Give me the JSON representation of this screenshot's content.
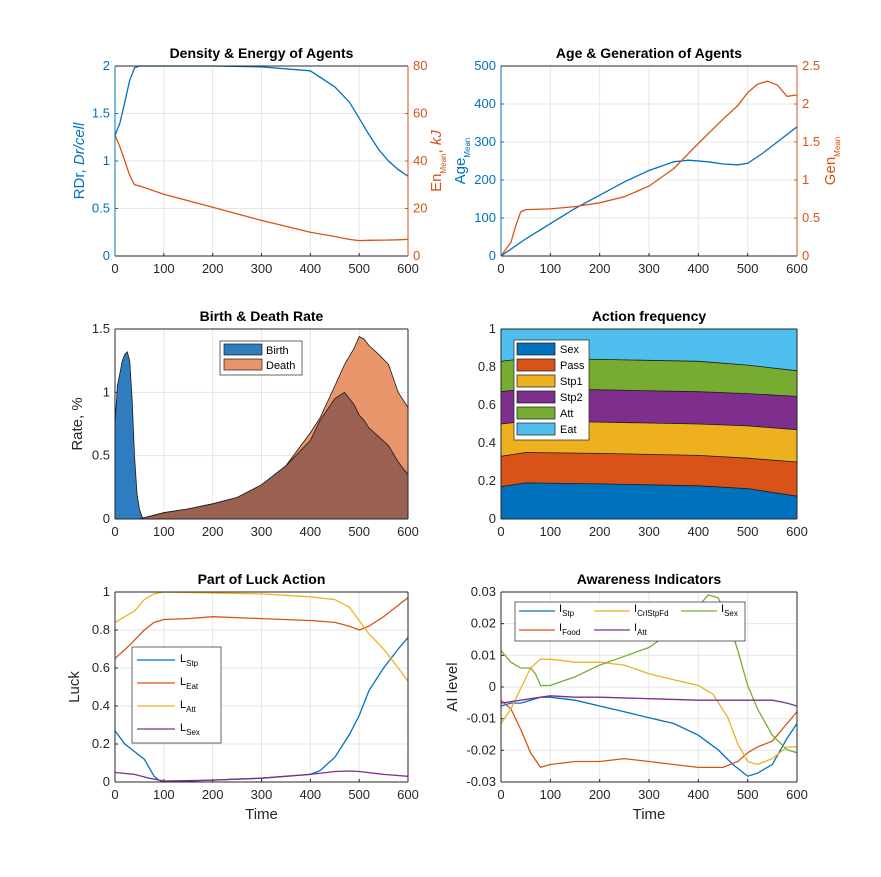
{
  "colors": {
    "blue": "#0072BD",
    "orange": "#D95319",
    "yellow": "#EDB120",
    "purple": "#7E2F8E",
    "green": "#77AC30",
    "cyan": "#4DBEEE"
  },
  "chart_data": [
    {
      "id": "density",
      "type": "line",
      "title": "Density & Energy of Agents",
      "xlim": [
        0,
        600
      ],
      "xticks": [
        0,
        100,
        200,
        300,
        400,
        500,
        600
      ],
      "ylabel_left_parts": [
        "RDr, ",
        "Dr/cell"
      ],
      "ylabel_right_parts": [
        "En",
        "Mean",
        ", ",
        "kJ"
      ],
      "ylim_left": [
        0,
        2
      ],
      "yticks_left": [
        "0",
        "0.5",
        "1",
        "1.5",
        "2"
      ],
      "ylim_right": [
        0,
        80
      ],
      "yticks_right": [
        "0",
        "20",
        "40",
        "60",
        "80"
      ],
      "series": [
        {
          "axis": "left",
          "color": "blue",
          "x": [
            0,
            10,
            20,
            30,
            40,
            50,
            100,
            200,
            300,
            400,
            450,
            480,
            500,
            520,
            540,
            560,
            580,
            600
          ],
          "y": [
            1.27,
            1.4,
            1.62,
            1.85,
            1.98,
            2.0,
            2.0,
            2.0,
            1.99,
            1.95,
            1.78,
            1.62,
            1.45,
            1.28,
            1.12,
            1.0,
            0.91,
            0.84
          ]
        },
        {
          "axis": "right",
          "color": "orange",
          "x": [
            0,
            10,
            20,
            30,
            40,
            50,
            100,
            200,
            300,
            400,
            450,
            480,
            500,
            520,
            550,
            580,
            600
          ],
          "y": [
            51,
            46,
            40,
            34,
            30,
            29.5,
            26,
            20.5,
            15,
            10,
            8.2,
            7,
            6.5,
            6.6,
            6.7,
            6.8,
            7
          ]
        }
      ]
    },
    {
      "id": "age",
      "type": "line",
      "title": "Age & Generation of Agents",
      "xlim": [
        0,
        600
      ],
      "xticks": [
        0,
        100,
        200,
        300,
        400,
        500,
        600
      ],
      "ylabel_left_parts": [
        "Age",
        "Mean"
      ],
      "ylabel_right_parts": [
        "Gen",
        "Mean"
      ],
      "ylim_left": [
        0,
        500
      ],
      "yticks_left": [
        "0",
        "100",
        "200",
        "300",
        "400",
        "500"
      ],
      "ylim_right": [
        0,
        2.5
      ],
      "yticks_right": [
        "0",
        "0.5",
        "1",
        "1.5",
        "2",
        "2.5"
      ],
      "series": [
        {
          "axis": "left",
          "color": "blue",
          "x": [
            0,
            50,
            100,
            150,
            200,
            250,
            300,
            350,
            380,
            420,
            450,
            480,
            500,
            530,
            560,
            600
          ],
          "y": [
            0,
            45,
            85,
            125,
            160,
            195,
            225,
            248,
            252,
            248,
            242,
            240,
            244,
            270,
            300,
            340
          ]
        },
        {
          "axis": "right",
          "color": "orange",
          "x": [
            0,
            20,
            30,
            40,
            50,
            100,
            150,
            200,
            250,
            300,
            350,
            400,
            450,
            480,
            500,
            520,
            540,
            560,
            580,
            600
          ],
          "y": [
            0,
            0.18,
            0.4,
            0.58,
            0.61,
            0.62,
            0.65,
            0.7,
            0.78,
            0.92,
            1.15,
            1.48,
            1.8,
            1.98,
            2.15,
            2.26,
            2.3,
            2.25,
            2.1,
            2.12
          ]
        }
      ]
    },
    {
      "id": "birth",
      "type": "area",
      "title": "Birth & Death Rate",
      "xlim": [
        0,
        600
      ],
      "xticks": [
        0,
        100,
        200,
        300,
        400,
        500,
        600
      ],
      "ylabel": "Rate, %",
      "ylim": [
        0,
        1.5
      ],
      "yticks": [
        "0",
        "0.5",
        "1",
        "1.5"
      ],
      "legend": [
        "Birth",
        "Death"
      ],
      "series": [
        {
          "name": "Birth",
          "color": "#2f7dc0",
          "x": [
            0,
            5,
            10,
            15,
            20,
            25,
            30,
            35,
            40,
            45,
            50,
            55,
            60
          ],
          "y": [
            0.75,
            1.05,
            1.15,
            1.25,
            1.3,
            1.32,
            1.25,
            0.95,
            0.5,
            0.2,
            0.08,
            0.02,
            0
          ]
        },
        {
          "name": "Death",
          "color": "#e8956b",
          "x": [
            50,
            60,
            80,
            100,
            150,
            200,
            250,
            300,
            350,
            400,
            420,
            450,
            470,
            490,
            500,
            510,
            520,
            540,
            560,
            580,
            600
          ],
          "y": [
            0,
            0.01,
            0.03,
            0.05,
            0.08,
            0.12,
            0.17,
            0.27,
            0.42,
            0.68,
            0.8,
            1.05,
            1.22,
            1.35,
            1.44,
            1.42,
            1.37,
            1.3,
            1.22,
            1.0,
            0.88
          ]
        },
        {
          "name": "overlap",
          "color": "#9a6152",
          "x": [
            50,
            60,
            80,
            100,
            150,
            200,
            250,
            300,
            350,
            400,
            420,
            450,
            470,
            490,
            500,
            510,
            520,
            540,
            560,
            580,
            600
          ],
          "y": [
            0,
            0.01,
            0.03,
            0.05,
            0.08,
            0.12,
            0.17,
            0.27,
            0.42,
            0.62,
            0.78,
            0.95,
            1.0,
            0.9,
            0.82,
            0.78,
            0.72,
            0.65,
            0.58,
            0.45,
            0.35
          ]
        }
      ]
    },
    {
      "id": "action",
      "type": "area",
      "title": "Action frequency",
      "xlim": [
        0,
        600
      ],
      "xticks": [
        0,
        100,
        200,
        300,
        400,
        500,
        600
      ],
      "ylim": [
        0,
        1
      ],
      "yticks": [
        "0",
        "0.2",
        "0.4",
        "0.6",
        "0.8",
        "1"
      ],
      "legend": [
        "Sex",
        "Pass",
        "Stp1",
        "Stp2",
        "Att",
        "Eat"
      ],
      "series": [
        {
          "name": "Sex",
          "color": "blue",
          "x": [
            0,
            50,
            200,
            400,
            500,
            600
          ],
          "y": [
            0.17,
            0.19,
            0.185,
            0.175,
            0.16,
            0.12
          ]
        },
        {
          "name": "Pass",
          "color": "orange",
          "x": [
            0,
            50,
            200,
            400,
            500,
            600
          ],
          "y": [
            0.33,
            0.35,
            0.345,
            0.335,
            0.32,
            0.3
          ]
        },
        {
          "name": "Stp1",
          "color": "yellow",
          "x": [
            0,
            50,
            200,
            400,
            500,
            600
          ],
          "y": [
            0.5,
            0.515,
            0.51,
            0.5,
            0.49,
            0.47
          ]
        },
        {
          "name": "Stp2",
          "color": "purple",
          "x": [
            0,
            50,
            200,
            400,
            500,
            600
          ],
          "y": [
            0.67,
            0.685,
            0.68,
            0.67,
            0.66,
            0.645
          ]
        },
        {
          "name": "Att",
          "color": "green",
          "x": [
            0,
            50,
            200,
            400,
            500,
            600
          ],
          "y": [
            0.83,
            0.845,
            0.84,
            0.83,
            0.81,
            0.78
          ]
        },
        {
          "name": "Eat",
          "color": "cyan",
          "x": [
            0,
            600
          ],
          "y": [
            1,
            1
          ]
        }
      ]
    },
    {
      "id": "luck",
      "type": "line",
      "title": "Part of Luck Action",
      "xlim": [
        0,
        600
      ],
      "xticks": [
        0,
        100,
        200,
        300,
        400,
        500,
        600
      ],
      "xlabel": "Time",
      "ylabel": "Luck",
      "ylim": [
        0,
        1
      ],
      "yticks": [
        "0",
        "0.2",
        "0.4",
        "0.6",
        "0.8",
        "1"
      ],
      "legend": [
        {
          "base": "L",
          "sub": "Stp"
        },
        {
          "base": "L",
          "sub": "Eat"
        },
        {
          "base": "L",
          "sub": "Att"
        },
        {
          "base": "L",
          "sub": "Sex"
        }
      ],
      "series": [
        {
          "name": "LStp",
          "color": "blue",
          "x": [
            0,
            20,
            40,
            60,
            80,
            90,
            100,
            200,
            300,
            400,
            420,
            450,
            480,
            500,
            520,
            550,
            580,
            600
          ],
          "y": [
            0.27,
            0.2,
            0.16,
            0.12,
            0.03,
            0.01,
            0,
            0.01,
            0.02,
            0.04,
            0.06,
            0.13,
            0.25,
            0.35,
            0.48,
            0.6,
            0.7,
            0.76
          ]
        },
        {
          "name": "LEat",
          "color": "orange",
          "x": [
            0,
            30,
            60,
            80,
            100,
            150,
            200,
            300,
            400,
            450,
            480,
            500,
            520,
            550,
            580,
            600
          ],
          "y": [
            0.65,
            0.72,
            0.8,
            0.84,
            0.855,
            0.86,
            0.87,
            0.86,
            0.85,
            0.84,
            0.82,
            0.8,
            0.82,
            0.87,
            0.93,
            0.97
          ]
        },
        {
          "name": "LAtt",
          "color": "yellow",
          "x": [
            0,
            20,
            40,
            60,
            80,
            100,
            200,
            300,
            400,
            450,
            480,
            500,
            520,
            550,
            580,
            600
          ],
          "y": [
            0.84,
            0.87,
            0.9,
            0.96,
            0.99,
            1.0,
            0.995,
            0.99,
            0.975,
            0.96,
            0.92,
            0.85,
            0.78,
            0.7,
            0.6,
            0.53
          ]
        },
        {
          "name": "LSex",
          "color": "purple",
          "x": [
            0,
            40,
            70,
            100,
            200,
            300,
            400,
            450,
            480,
            500,
            550,
            600
          ],
          "y": [
            0.05,
            0.04,
            0.02,
            0.005,
            0.01,
            0.02,
            0.04,
            0.055,
            0.058,
            0.055,
            0.04,
            0.03
          ]
        }
      ]
    },
    {
      "id": "awareness",
      "type": "line",
      "title": "Awareness Indicators",
      "xlim": [
        0,
        600
      ],
      "xticks": [
        0,
        100,
        200,
        300,
        400,
        500,
        600
      ],
      "xlabel": "Time",
      "ylabel": "AI level",
      "ylim": [
        -0.03,
        0.035
      ],
      "yticks": [
        "-0.03",
        "-0.02",
        "-0.01",
        "0",
        "0.01",
        "0.02",
        "0.03"
      ],
      "legend": [
        {
          "base": "I",
          "sub": "Stp"
        },
        {
          "base": "I",
          "sub": "CrlStpFd"
        },
        {
          "base": "I",
          "sub": "Sex"
        },
        {
          "base": "I",
          "sub": "Food"
        },
        {
          "base": "I",
          "sub": "Att"
        }
      ],
      "series": [
        {
          "name": "IStp",
          "color": "blue",
          "x": [
            0,
            20,
            40,
            60,
            80,
            100,
            150,
            200,
            250,
            300,
            350,
            400,
            440,
            470,
            500,
            520,
            550,
            580,
            600
          ],
          "y": [
            -0.004,
            -0.003,
            -0.003,
            -0.002,
            -0.001,
            -0.001,
            -0.002,
            -0.004,
            -0.006,
            -0.008,
            -0.01,
            -0.014,
            -0.019,
            -0.024,
            -0.028,
            -0.027,
            -0.024,
            -0.015,
            -0.01
          ]
        },
        {
          "name": "IFood",
          "color": "orange",
          "x": [
            0,
            20,
            40,
            60,
            80,
            100,
            150,
            200,
            250,
            300,
            350,
            400,
            450,
            480,
            500,
            520,
            550,
            580,
            600
          ],
          "y": [
            -0.002,
            -0.005,
            -0.012,
            -0.02,
            -0.025,
            -0.024,
            -0.023,
            -0.023,
            -0.022,
            -0.023,
            -0.024,
            -0.025,
            -0.025,
            -0.023,
            -0.02,
            -0.018,
            -0.016,
            -0.01,
            -0.006
          ]
        },
        {
          "name": "ICrlStpFd",
          "color": "yellow",
          "x": [
            0,
            20,
            40,
            60,
            80,
            100,
            150,
            200,
            250,
            300,
            350,
            400,
            430,
            460,
            480,
            500,
            520,
            550,
            580,
            600
          ],
          "y": [
            -0.01,
            -0.005,
            0.002,
            0.009,
            0.012,
            0.012,
            0.011,
            0.011,
            0.01,
            0.007,
            0.005,
            0.003,
            0.0,
            -0.008,
            -0.017,
            -0.023,
            -0.024,
            -0.022,
            -0.018,
            -0.018
          ]
        },
        {
          "name": "ISex",
          "color": "green",
          "x": [
            0,
            20,
            40,
            60,
            70,
            80,
            100,
            150,
            200,
            250,
            300,
            350,
            400,
            420,
            440,
            460,
            480,
            500,
            520,
            550,
            580,
            600
          ],
          "y": [
            0.015,
            0.011,
            0.009,
            0.009,
            0.007,
            0.003,
            0.003,
            0.006,
            0.01,
            0.013,
            0.016,
            0.022,
            0.03,
            0.034,
            0.033,
            0.026,
            0.015,
            0.003,
            -0.005,
            -0.014,
            -0.019,
            -0.02
          ]
        },
        {
          "name": "IAtt",
          "color": "purple",
          "x": [
            0,
            40,
            80,
            100,
            150,
            200,
            300,
            400,
            450,
            500,
            550,
            580,
            600
          ],
          "y": [
            -0.003,
            -0.002,
            -0.001,
            -0.0005,
            -0.001,
            -0.001,
            -0.0015,
            -0.002,
            -0.002,
            -0.002,
            -0.002,
            -0.003,
            -0.004
          ]
        }
      ]
    }
  ]
}
